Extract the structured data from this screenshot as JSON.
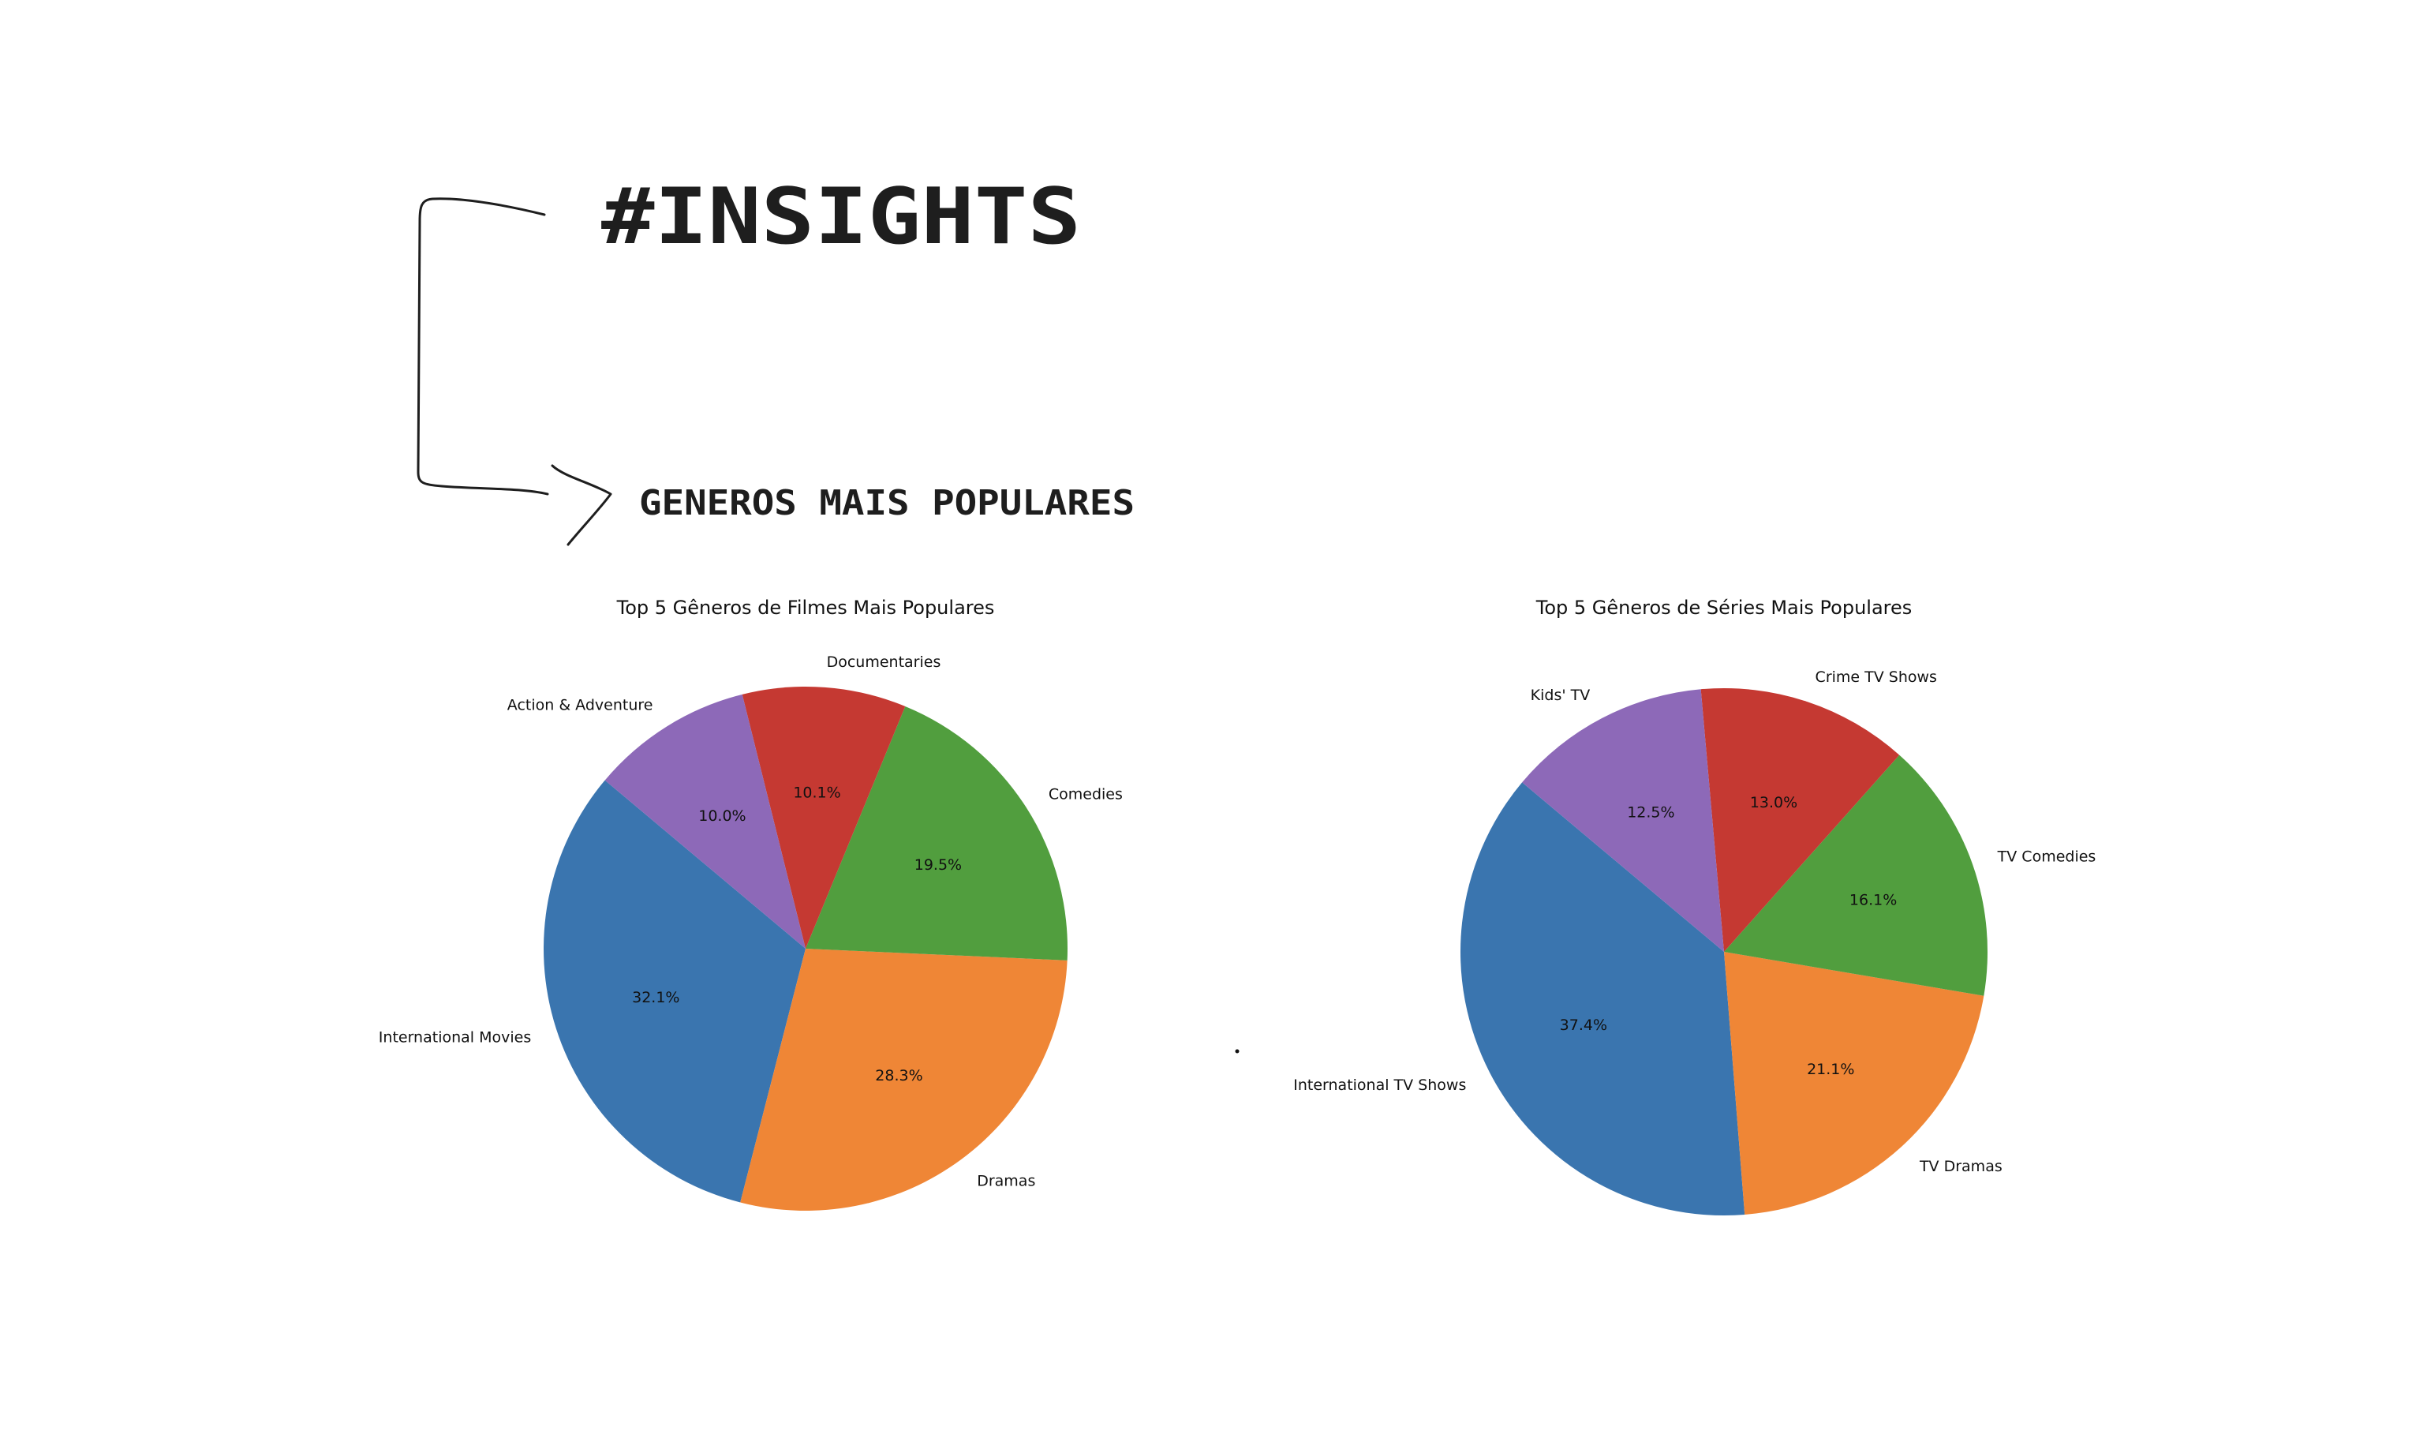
{
  "heading": {
    "title": "#INSIGHTS",
    "subtitle": "GENEROS MAIS POPULARES"
  },
  "chart_data": [
    {
      "type": "pie",
      "title": "Top 5 Gêneros de Filmes Mais Populares",
      "categories": [
        "International Movies",
        "Dramas",
        "Comedies",
        "Documentaries",
        "Action & Adventure"
      ],
      "values": [
        32.1,
        28.3,
        19.5,
        10.1,
        10.0
      ],
      "value_labels": [
        "32.1%",
        "28.3%",
        "19.5%",
        "10.1%",
        "10.0%"
      ],
      "colors": [
        "#3a75af",
        "#ef8636",
        "#519e3e",
        "#c53932",
        "#8d69b8"
      ],
      "start_angle": 140,
      "direction": "counterclockwise"
    },
    {
      "type": "pie",
      "title": "Top 5 Gêneros de Séries Mais Populares",
      "categories": [
        "International TV Shows",
        "TV Dramas",
        "TV Comedies",
        "Crime TV Shows",
        "Kids' TV"
      ],
      "values": [
        37.4,
        21.1,
        16.1,
        13.0,
        12.5
      ],
      "value_labels": [
        "37.4%",
        "21.1%",
        "16.1%",
        "13.0%",
        "12.5%"
      ],
      "colors": [
        "#3a75af",
        "#ef8636",
        "#519e3e",
        "#c53932",
        "#8d69b8"
      ],
      "start_angle": 140,
      "direction": "counterclockwise"
    }
  ]
}
